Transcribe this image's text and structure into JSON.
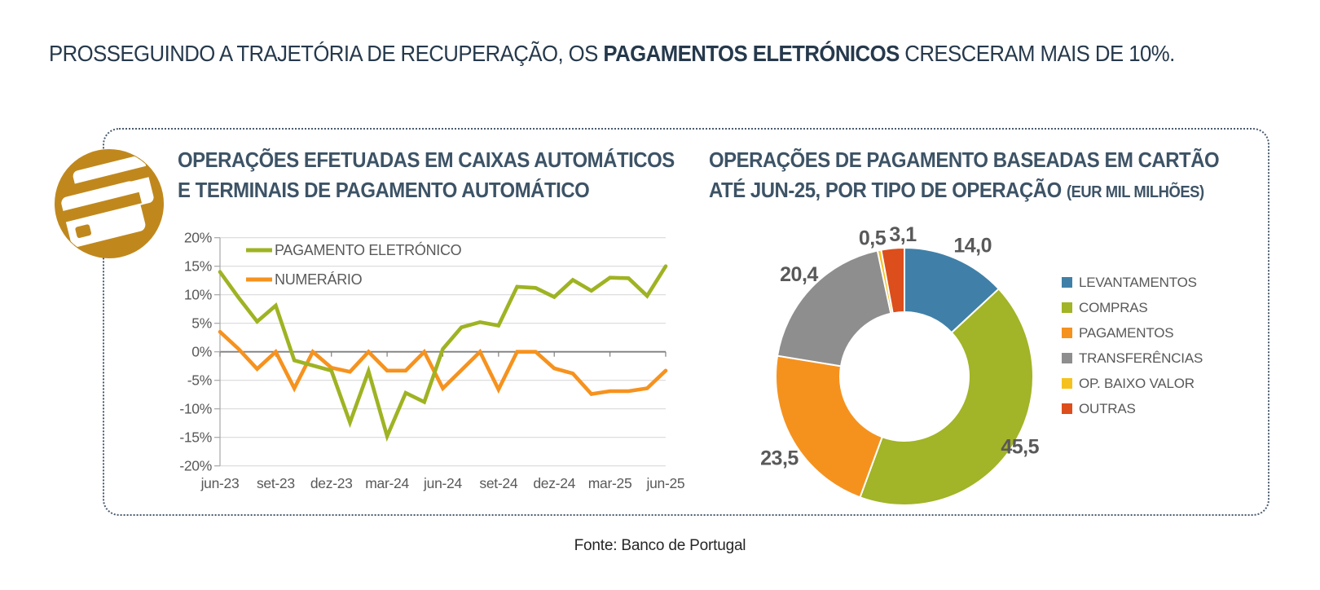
{
  "headline": {
    "prefix": "PROSSEGUINDO A TRAJETÓRIA DE RECUPERAÇÃO, OS ",
    "bold": "PAGAMENTOS ELETRÓNICOS",
    "suffix": " CRESCERAM MAIS DE 10%."
  },
  "colors": {
    "headline_navy": "#26394C",
    "title_slate": "#3D5366",
    "axis_text_gray": "#595959",
    "grid_light": "#D9D9D9",
    "grid_zero": "#7F7F7F",
    "axis_line": "#A6A6A6",
    "electronic_green": "#9FB323",
    "cash_orange": "#F6921E",
    "icon_gold": "#C0881C",
    "panel_dot_border": "#4A5B6E"
  },
  "icon": {
    "name": "credit-cards-icon"
  },
  "chart_data": [
    {
      "type": "line",
      "title_line1": "OPERAÇÕES EFETUADAS EM CAIXAS AUTOMÁTICOS",
      "title_line2": "E TERMINAIS DE PAGAMENTO AUTOMÁTICO",
      "x": [
        "jun-23",
        "jul-23",
        "ago-23",
        "set-23",
        "out-23",
        "nov-23",
        "dez-23",
        "jan-24",
        "fev-24",
        "mar-24",
        "abr-24",
        "mai-24",
        "jun-24",
        "jul-24",
        "ago-24",
        "set-24",
        "out-24",
        "nov-24",
        "dez-24",
        "jan-25",
        "fev-25",
        "mar-25",
        "abr-25",
        "mai-25",
        "jun-25"
      ],
      "x_tick_labels": [
        "jun-23",
        "set-23",
        "dez-23",
        "mar-24",
        "jun-24",
        "set-24",
        "dez-24",
        "mar-25",
        "jun-25"
      ],
      "y_tick_labels": [
        "20%",
        "15%",
        "10%",
        "5%",
        "0%",
        "-5%",
        "-10%",
        "-15%",
        "-20%"
      ],
      "ylim": [
        -20,
        20
      ],
      "ytick_step": 5,
      "grid": true,
      "legend_position": "top-left",
      "series": [
        {
          "name": "PAGAMENTO ELETRÓNICO",
          "color": "#9FB323",
          "values": [
            14.0,
            9.5,
            5.3,
            8.1,
            -1.5,
            -2.4,
            -3.3,
            -12.4,
            -3.4,
            -14.8,
            -7.2,
            -8.8,
            0.5,
            4.3,
            5.2,
            4.6,
            11.4,
            11.2,
            9.6,
            12.6,
            10.7,
            13.0,
            12.9,
            9.8,
            15.0
          ]
        },
        {
          "name": "NUMERÁRIO",
          "color": "#F6921E",
          "values": [
            3.5,
            0.5,
            -3.0,
            0.0,
            -6.4,
            0.0,
            -2.8,
            -3.5,
            0.0,
            -3.3,
            -3.3,
            0.0,
            -6.4,
            -3.2,
            0.0,
            -6.6,
            0.0,
            0.0,
            -2.9,
            -3.8,
            -7.4,
            -6.9,
            -6.9,
            -6.4,
            -3.3
          ]
        }
      ]
    },
    {
      "type": "pie",
      "subtype": "donut",
      "title_line1": "OPERAÇÕES DE PAGAMENTO BASEADAS EM CARTÃO",
      "title_line2": "ATÉ JUN-25, POR TIPO DE OPERAÇÃO",
      "title_suffix": "(EUR MIL MILHÕES)",
      "legend_position": "right",
      "segments": [
        {
          "label": "LEVANTAMENTOS",
          "value": 14.0,
          "value_label": "14,0",
          "color": "#4080A8"
        },
        {
          "label": "COMPRAS",
          "value": 45.5,
          "value_label": "45,5",
          "color": "#A2B427"
        },
        {
          "label": "PAGAMENTOS",
          "value": 23.5,
          "value_label": "23,5",
          "color": "#F5921E"
        },
        {
          "label": "TRANSFERÊNCIAS",
          "value": 20.4,
          "value_label": "20,4",
          "color": "#8E8E8E"
        },
        {
          "label": "OP. BAIXO VALOR",
          "value": 0.5,
          "value_label": "0,5",
          "color": "#F5C21D"
        },
        {
          "label": "OUTRAS",
          "value": 3.1,
          "value_label": "3,1",
          "color": "#DC4E1C"
        }
      ]
    }
  ],
  "footer": {
    "source": "Fonte: Banco de Portugal"
  }
}
